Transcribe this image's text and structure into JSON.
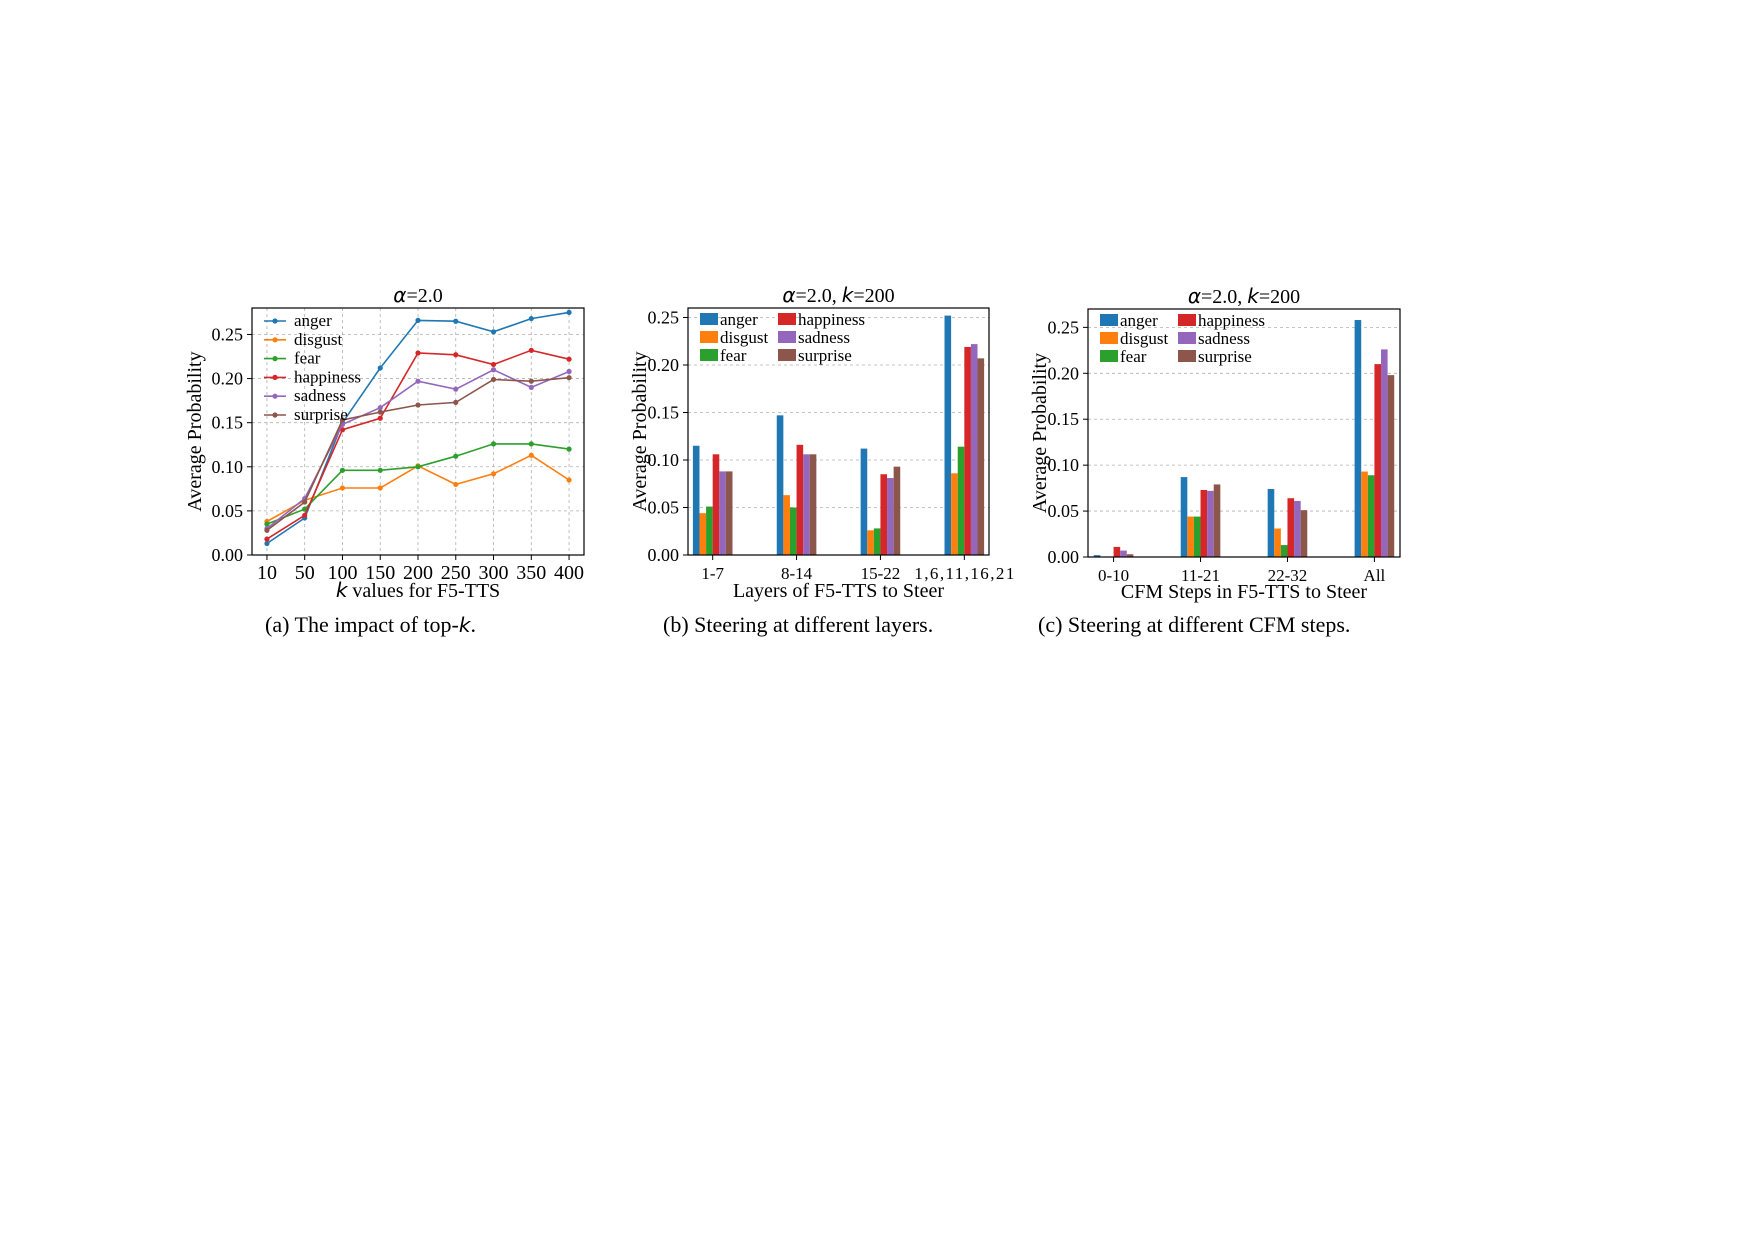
{
  "colors": {
    "anger": "#1f77b4",
    "disgust": "#ff7f0e",
    "fear": "#2ca02c",
    "happiness": "#d62728",
    "sadness": "#9467bd",
    "surprise": "#8c564b"
  },
  "captions": {
    "a": {
      "pre": "(a) The impact of top-",
      "k": "k",
      "post": "."
    },
    "b": {
      "text": "(b) Steering at different layers."
    },
    "c": {
      "text": "(c) Steering at different CFM steps."
    }
  },
  "chart_data": [
    {
      "type": "line",
      "title": {
        "symbol": "α",
        "rest": "=2.0",
        "k": ""
      },
      "xlabel": {
        "k": "k",
        "rest": " values for F5-TTS"
      },
      "ylabel": "Average Probability",
      "x": [
        "10",
        "50",
        "100",
        "150",
        "200",
        "250",
        "300",
        "350",
        "400"
      ],
      "ylim": [
        0,
        0.28
      ],
      "yticks": [
        "0.00",
        "0.05",
        "0.10",
        "0.15",
        "0.20",
        "0.25"
      ],
      "grid": true,
      "legend": "top-left",
      "series": [
        {
          "name": "anger",
          "values": [
            0.013,
            0.042,
            0.15,
            0.212,
            0.266,
            0.265,
            0.253,
            0.268,
            0.275
          ]
        },
        {
          "name": "disgust",
          "values": [
            0.038,
            0.062,
            0.076,
            0.076,
            0.101,
            0.08,
            0.092,
            0.113,
            0.085
          ]
        },
        {
          "name": "fear",
          "values": [
            0.035,
            0.052,
            0.096,
            0.096,
            0.1,
            0.112,
            0.126,
            0.126,
            0.12
          ]
        },
        {
          "name": "happiness",
          "values": [
            0.018,
            0.045,
            0.142,
            0.155,
            0.229,
            0.227,
            0.216,
            0.232,
            0.222
          ]
        },
        {
          "name": "sadness",
          "values": [
            0.03,
            0.064,
            0.148,
            0.167,
            0.197,
            0.188,
            0.21,
            0.19,
            0.208
          ]
        },
        {
          "name": "surprise",
          "values": [
            0.028,
            0.06,
            0.153,
            0.162,
            0.17,
            0.173,
            0.199,
            0.197,
            0.201
          ]
        }
      ]
    },
    {
      "type": "bar",
      "title": {
        "symbol": "α",
        "rest": "=2.0, ",
        "k": "k",
        "rest2": "=200"
      },
      "xlabel": {
        "k": "",
        "rest": "Layers of F5-TTS to Steer"
      },
      "ylabel": "Average Probability",
      "categories": [
        "1-7",
        "8-14",
        "15-22",
        "1,6,11,16,21"
      ],
      "ylim": [
        0,
        0.26
      ],
      "yticks": [
        "0.00",
        "0.05",
        "0.10",
        "0.15",
        "0.20",
        "0.25"
      ],
      "grid": true,
      "legend": "top-left",
      "series": [
        {
          "name": "anger",
          "values": [
            0.115,
            0.147,
            0.112,
            0.252
          ]
        },
        {
          "name": "disgust",
          "values": [
            0.044,
            0.063,
            0.026,
            0.086
          ]
        },
        {
          "name": "fear",
          "values": [
            0.051,
            0.05,
            0.028,
            0.114
          ]
        },
        {
          "name": "happiness",
          "values": [
            0.106,
            0.116,
            0.085,
            0.219
          ]
        },
        {
          "name": "sadness",
          "values": [
            0.088,
            0.106,
            0.081,
            0.222
          ]
        },
        {
          "name": "surprise",
          "values": [
            0.088,
            0.106,
            0.093,
            0.207
          ]
        }
      ]
    },
    {
      "type": "bar",
      "title": {
        "symbol": "α",
        "rest": "=2.0, ",
        "k": "k",
        "rest2": "=200"
      },
      "xlabel": {
        "k": "",
        "rest": "CFM Steps in F5-TTS to Steer"
      },
      "ylabel": "Average Probability",
      "categories": [
        "0-10",
        "11-21",
        "22-32",
        "All"
      ],
      "ylim": [
        0,
        0.27
      ],
      "yticks": [
        "0.00",
        "0.05",
        "0.10",
        "0.15",
        "0.20",
        "0.25"
      ],
      "grid": true,
      "legend": "top-left",
      "series": [
        {
          "name": "anger",
          "values": [
            0.002,
            0.087,
            0.074,
            0.258
          ]
        },
        {
          "name": "disgust",
          "values": [
            0.0,
            0.044,
            0.031,
            0.093
          ]
        },
        {
          "name": "fear",
          "values": [
            0.0,
            0.044,
            0.013,
            0.089
          ]
        },
        {
          "name": "happiness",
          "values": [
            0.011,
            0.073,
            0.064,
            0.21
          ]
        },
        {
          "name": "sadness",
          "values": [
            0.007,
            0.072,
            0.061,
            0.226
          ]
        },
        {
          "name": "surprise",
          "values": [
            0.003,
            0.079,
            0.051,
            0.198
          ]
        }
      ]
    }
  ]
}
